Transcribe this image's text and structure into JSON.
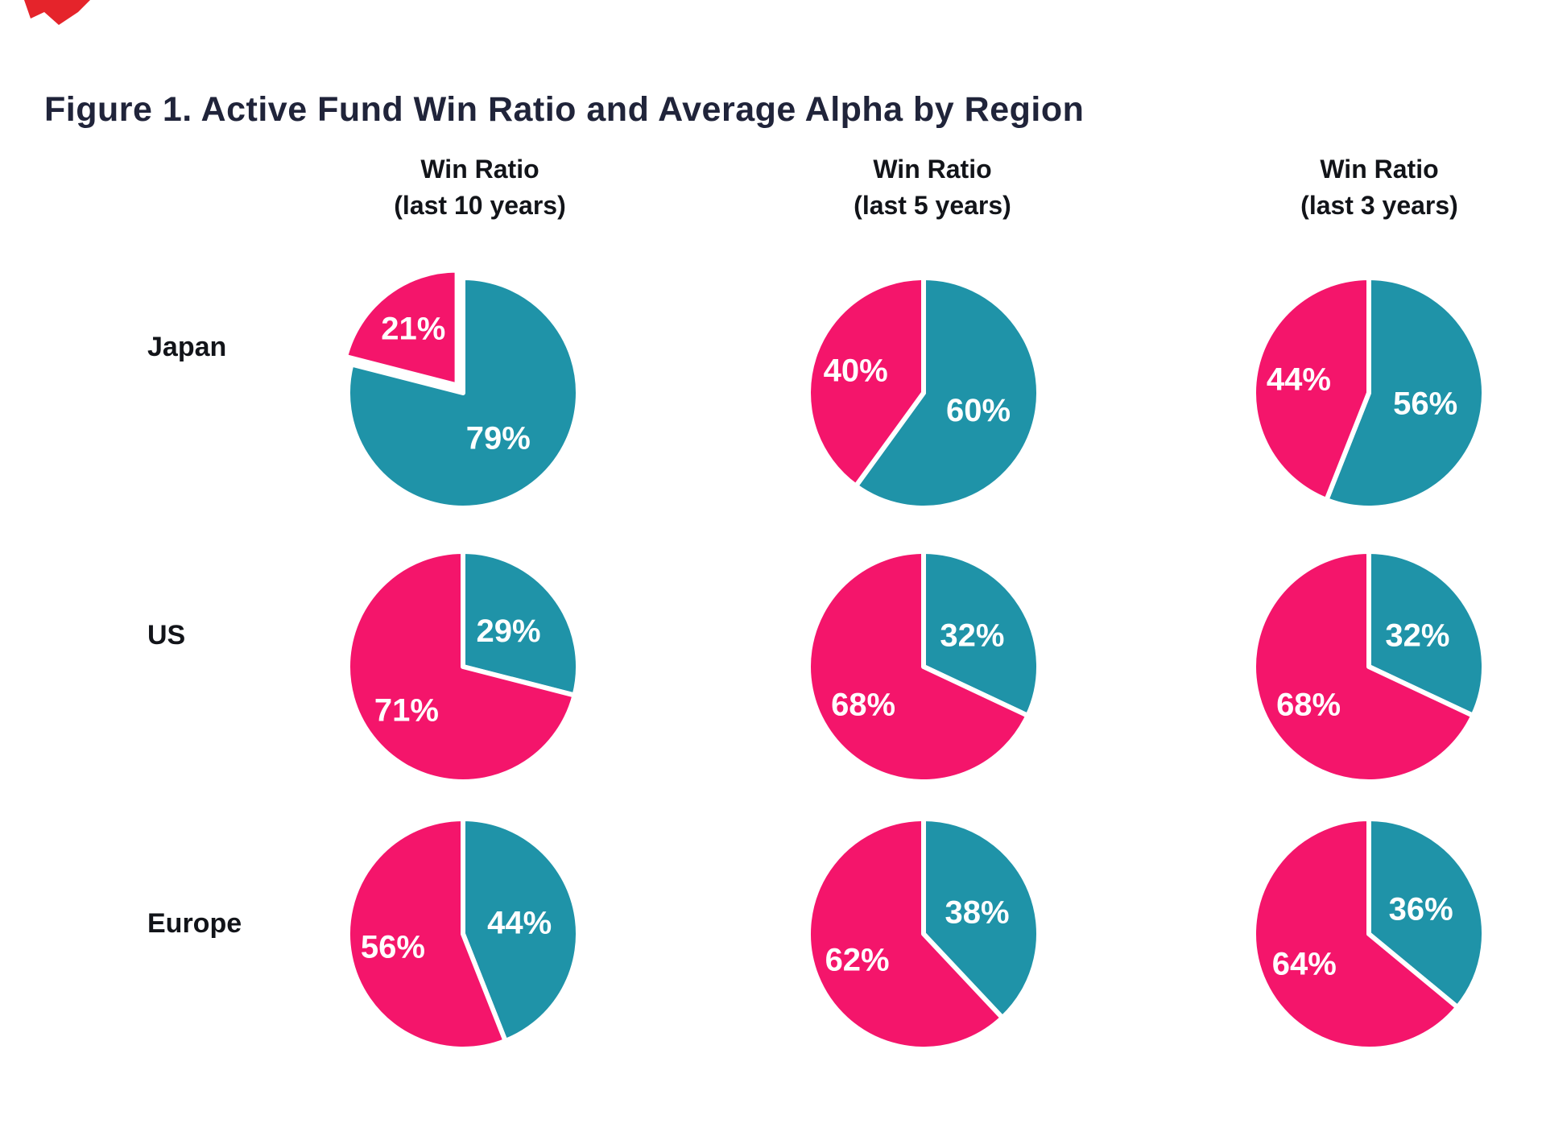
{
  "title": "Figure 1. Active Fund Win Ratio and Average Alpha by Region",
  "decoration": {
    "corner_mark_color": "#e5242b"
  },
  "colors": {
    "pink": "#F4156B",
    "teal": "#1F93A8",
    "title_text": "#20243A",
    "header_text": "#121419",
    "row_label_text": "#121419",
    "slice_label_text": "#ffffff",
    "background": "#ffffff"
  },
  "columns": [
    {
      "label_line1": "Win Ratio",
      "label_line2": "(last 10 years)"
    },
    {
      "label_line1": "Win Ratio",
      "label_line2": "(last 5 years)"
    },
    {
      "label_line1": "Win Ratio",
      "label_line2": "(last 3 years)"
    }
  ],
  "rows": [
    {
      "label": "Japan"
    },
    {
      "label": "US"
    },
    {
      "label": "Europe"
    }
  ],
  "chart_data": {
    "type": "pie",
    "label_format": "{value}%",
    "layout": {
      "start_angle_deg": 0,
      "teal_first_clockwise": true,
      "labels_inside": true,
      "grid": "3x3",
      "legend": "none"
    },
    "pies": [
      {
        "row": "Japan",
        "column": "Win Ratio (last 10 years)",
        "pink": 21,
        "teal": 79,
        "pink_label": "21%",
        "teal_label": "79%",
        "exploded_slice": "pink"
      },
      {
        "row": "Japan",
        "column": "Win Ratio (last 5 years)",
        "pink": 40,
        "teal": 60,
        "pink_label": "40%",
        "teal_label": "60%"
      },
      {
        "row": "Japan",
        "column": "Win Ratio (last 3 years)",
        "pink": 44,
        "teal": 56,
        "pink_label": "44%",
        "teal_label": "56%"
      },
      {
        "row": "US",
        "column": "Win Ratio (last 10 years)",
        "pink": 71,
        "teal": 29,
        "pink_label": "71%",
        "teal_label": "29%"
      },
      {
        "row": "US",
        "column": "Win Ratio (last 5 years)",
        "pink": 68,
        "teal": 32,
        "pink_label": "68%",
        "teal_label": "32%"
      },
      {
        "row": "US",
        "column": "Win Ratio (last 3 years)",
        "pink": 68,
        "teal": 32,
        "pink_label": "68%",
        "teal_label": "32%"
      },
      {
        "row": "Europe",
        "column": "Win Ratio (last 10 years)",
        "pink": 56,
        "teal": 44,
        "pink_label": "56%",
        "teal_label": "44%"
      },
      {
        "row": "Europe",
        "column": "Win Ratio (last 5 years)",
        "pink": 62,
        "teal": 38,
        "pink_label": "62%",
        "teal_label": "38%"
      },
      {
        "row": "Europe",
        "column": "Win Ratio (last 3 years)",
        "pink": 64,
        "teal": 36,
        "pink_label": "64%",
        "teal_label": "36%"
      }
    ]
  }
}
